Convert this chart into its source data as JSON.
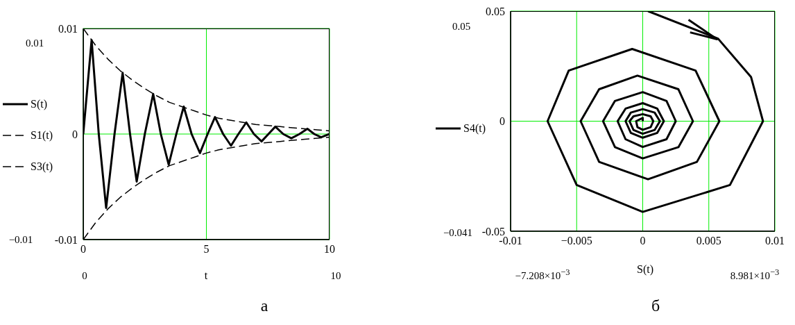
{
  "chart_data": [
    {
      "type": "line",
      "title": "а",
      "xlabel": "t",
      "xlim": [
        0,
        10
      ],
      "xticks": [
        0,
        5,
        10
      ],
      "ylim": [
        -0.01,
        0.01
      ],
      "yticks": [
        -0.01,
        0,
        0.01
      ],
      "grid": true,
      "legend": "left",
      "annotations": [
        "0.01",
        "−0.01",
        "0",
        "10"
      ],
      "series": [
        {
          "name": "S(t)",
          "color": "#000000",
          "line_style": "solid",
          "x": [
            0,
            0.34,
            0.63,
            0.93,
            1.27,
            1.6,
            1.9,
            2.17,
            2.5,
            2.84,
            3.15,
            3.47,
            3.78,
            4.08,
            4.4,
            4.74,
            5.05,
            5.35,
            5.68,
            6.0,
            6.3,
            6.62,
            6.93,
            7.24,
            7.52,
            7.8,
            8.12,
            8.45,
            8.78,
            9.1,
            9.38,
            9.66,
            10
          ],
          "values": [
            0,
            0.0089,
            0,
            -0.007,
            0,
            0.0058,
            0,
            -0.0045,
            0,
            0.0038,
            0,
            -0.0029,
            0,
            0.0026,
            0,
            -0.0018,
            0,
            0.0016,
            0,
            -0.0011,
            0,
            0.0011,
            0,
            -0.0007,
            0,
            0.0007,
            0,
            -0.0004,
            0,
            0.0005,
            0,
            -0.0003,
            0
          ]
        },
        {
          "name": "S1(t)",
          "color": "#000000",
          "line_style": "dashed",
          "x": [
            0,
            0.5,
            1,
            1.5,
            2,
            2.5,
            3,
            3.5,
            4,
            4.5,
            5,
            5.5,
            6,
            6.5,
            7,
            7.5,
            8,
            8.5,
            9,
            9.5,
            10
          ],
          "values": [
            0.01,
            0.0084,
            0.0071,
            0.006,
            0.0051,
            0.0043,
            0.0036,
            0.003,
            0.0026,
            0.0022,
            0.0018,
            0.0015,
            0.0013,
            0.0011,
            0.0009,
            0.0008,
            0.0007,
            0.0006,
            0.0005,
            0.0004,
            0.0003
          ]
        },
        {
          "name": "S3(t)",
          "color": "#000000",
          "line_style": "dashed",
          "x": [
            0,
            0.5,
            1,
            1.5,
            2,
            2.5,
            3,
            3.5,
            4,
            4.5,
            5,
            5.5,
            6,
            6.5,
            7,
            7.5,
            8,
            8.5,
            9,
            9.5,
            10
          ],
          "values": [
            -0.01,
            -0.0084,
            -0.0071,
            -0.006,
            -0.0051,
            -0.0043,
            -0.0036,
            -0.003,
            -0.0026,
            -0.0022,
            -0.0018,
            -0.0015,
            -0.0013,
            -0.0011,
            -0.0009,
            -0.0008,
            -0.0007,
            -0.0006,
            -0.0005,
            -0.0004,
            -0.0003
          ]
        }
      ]
    },
    {
      "type": "line",
      "title": "б",
      "xlabel": "S(t)",
      "xlim": [
        -0.01,
        0.01
      ],
      "xticks": [
        -0.01,
        {
          "value": -0.005,
          "label": "−0.005"
        },
        0,
        0.005,
        0.01
      ],
      "ylim": [
        -0.05,
        0.05
      ],
      "yticks": [
        -0.05,
        0,
        0.05
      ],
      "grid": true,
      "legend": "left",
      "annotations": [
        "0.05",
        "−0.041",
        "−7.208×10$^{−3}$",
        "8.981×10$^{−3}$"
      ],
      "series": [
        {
          "name": "S4(t)",
          "color": "#000000",
          "line_style": "solid",
          "x": [
            0.0004,
            0.0057,
            0.0082,
            0.0091,
            0.0066,
            0,
            -0.005,
            -0.0072,
            -0.0056,
            -0.0008,
            0.004,
            0.0058,
            0.0041,
            0.0004,
            -0.0033,
            -0.0047,
            -0.0033,
            -0.0004,
            0.0027,
            0.0038,
            0.0027,
            0,
            -0.0021,
            -0.003,
            -0.0021,
            0,
            0.0018,
            0.0025,
            0.0018,
            0,
            -0.0013,
            -0.0019,
            -0.0013,
            0,
            0.0011,
            0.0016,
            0.0011,
            0,
            -0.0009,
            -0.0013,
            -0.0009,
            0,
            0.0009,
            0.0013,
            0.0009,
            0,
            -0.0007,
            -0.001,
            -0.0007,
            0,
            0.0006,
            0.0008,
            0.0006,
            0,
            -0.0004,
            -0.0005,
            0,
            0
          ],
          "values": [
            0.05,
            0.0375,
            0.02,
            0,
            -0.029,
            -0.0412,
            -0.029,
            0,
            0.023,
            0.0328,
            0.023,
            0,
            -0.0185,
            -0.0264,
            -0.0185,
            0,
            0.0145,
            0.0207,
            0.0145,
            0,
            -0.0118,
            -0.0169,
            -0.0118,
            0,
            0.0092,
            0.0132,
            0.0092,
            0,
            -0.0082,
            -0.0117,
            -0.0082,
            0,
            0.0057,
            0.0082,
            0.0057,
            0,
            -0.0053,
            -0.0075,
            -0.0053,
            0,
            0.0039,
            0.0055,
            0.0039,
            0,
            -0.004,
            -0.0057,
            -0.004,
            0,
            0.0022,
            0.0032,
            0.0022,
            0,
            -0.0027,
            -0.0039,
            -0.0027,
            0,
            0.0015,
            0
          ]
        }
      ]
    }
  ]
}
